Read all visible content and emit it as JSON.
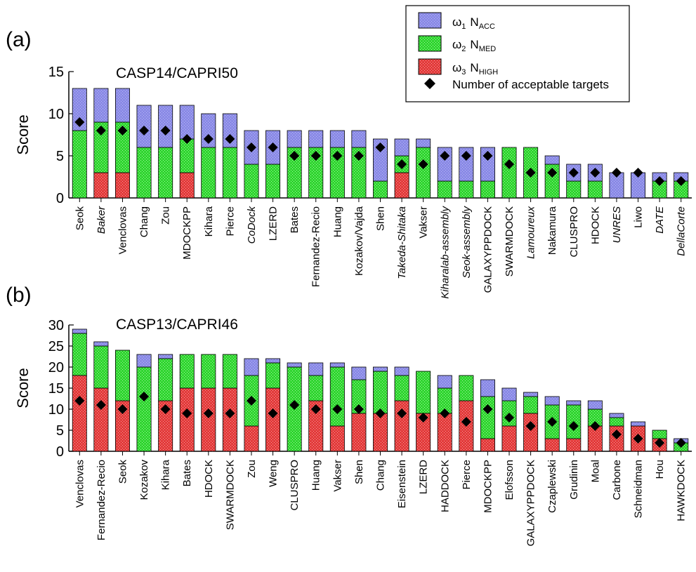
{
  "colors": {
    "acc": "#8a8ae6",
    "med": "#33dd33",
    "high": "#e33a3a",
    "marker": "#000000"
  },
  "legend": {
    "acc_w": "ω",
    "acc_w_sub": "1",
    "acc_n": "N",
    "acc_n_sub": "ACC",
    "med_w": "ω",
    "med_w_sub": "2",
    "med_n": "N",
    "med_n_sub": "MED",
    "high_w": "ω",
    "high_w_sub": "3",
    "high_n": "N",
    "high_n_sub": "HIGH",
    "marker_label": "Number of acceptable targets"
  },
  "chart_data": [
    {
      "type": "bar",
      "panel_label": "(a)",
      "title": "CASP14/CAPRI50",
      "ylabel": "Score",
      "ylim": [
        0,
        15
      ],
      "yticks": [
        0,
        5,
        10,
        15
      ],
      "categories": [
        "Seok",
        "Baker",
        "Venclovas",
        "Chang",
        "Zou",
        "MDOCKPP",
        "Kihara",
        "Pierce",
        "CoDock",
        "LZERD",
        "Bates",
        "Fernandez-Recio",
        "Huang",
        "Kozakov/Vajda",
        "Shen",
        "Takeda-Shitaka",
        "Vakser",
        "Kiharalab-assembly",
        "Seok-assembly",
        "GALAXYPPDOCK",
        "SWARMDOCK",
        "Lamoureux",
        "Nakamura",
        "CLUSPRO",
        "HDOCK",
        "UNRES",
        "Liwo",
        "DATE",
        "DellaCorte"
      ],
      "italic": [
        false,
        true,
        false,
        false,
        false,
        false,
        false,
        false,
        true,
        false,
        false,
        false,
        false,
        false,
        false,
        true,
        false,
        true,
        true,
        false,
        false,
        true,
        false,
        false,
        false,
        true,
        false,
        true,
        true
      ],
      "series": [
        {
          "name": "ω3 N_HIGH",
          "values": [
            0,
            3,
            3,
            0,
            0,
            3,
            0,
            0,
            0,
            0,
            0,
            0,
            0,
            0,
            0,
            3,
            0,
            0,
            0,
            0,
            0,
            0,
            0,
            0,
            0,
            0,
            0,
            0,
            0
          ]
        },
        {
          "name": "ω2 N_MED",
          "values": [
            8,
            6,
            6,
            6,
            6,
            4,
            6,
            6,
            4,
            4,
            6,
            6,
            6,
            6,
            2,
            2,
            6,
            2,
            2,
            2,
            6,
            6,
            4,
            2,
            2,
            0,
            0,
            2,
            2
          ]
        },
        {
          "name": "ω1 N_ACC",
          "values": [
            5,
            4,
            4,
            5,
            5,
            4,
            4,
            4,
            4,
            4,
            2,
            2,
            2,
            2,
            5,
            2,
            1,
            4,
            4,
            4,
            0,
            0,
            1,
            2,
            2,
            3,
            3,
            1,
            1
          ]
        }
      ],
      "acceptable_targets": [
        9,
        8,
        8,
        8,
        8,
        7,
        7,
        7,
        6,
        6,
        5,
        5,
        5,
        5,
        6,
        4,
        4,
        5,
        5,
        5,
        4,
        3,
        3,
        3,
        3,
        3,
        3,
        2,
        2
      ]
    },
    {
      "type": "bar",
      "panel_label": "(b)",
      "title": "CASP13/CAPRI46",
      "ylabel": "Score",
      "ylim": [
        0,
        30
      ],
      "yticks": [
        0,
        5,
        10,
        15,
        20,
        25,
        30
      ],
      "categories": [
        "Venclovas",
        "Fernandez-Recio",
        "Seok",
        "Kozakov",
        "Kihara",
        "Bates",
        "HDOCK",
        "SWARMDOCK",
        "Zou",
        "Weng",
        "CLUSPRO",
        "Huang",
        "Vakser",
        "Shen",
        "Chang",
        "Eisenstein",
        "LZERD",
        "HADDOCK",
        "Pierce",
        "MDOCKPP",
        "Elofsson",
        "GALAXYPPDOCK",
        "Czaplewski",
        "Grudinin",
        "Moal",
        "Carbone",
        "Schneidman",
        "Hou",
        "HAWKDOCK"
      ],
      "italic": [
        false,
        false,
        false,
        false,
        false,
        false,
        false,
        false,
        false,
        false,
        false,
        false,
        false,
        false,
        false,
        false,
        false,
        false,
        false,
        false,
        false,
        false,
        false,
        false,
        false,
        false,
        false,
        false,
        false
      ],
      "series": [
        {
          "name": "ω3 N_HIGH",
          "values": [
            18,
            15,
            12,
            0,
            12,
            15,
            15,
            15,
            6,
            15,
            0,
            12,
            6,
            9,
            9,
            12,
            9,
            9,
            12,
            3,
            6,
            9,
            3,
            3,
            6,
            6,
            6,
            3,
            0
          ]
        },
        {
          "name": "ω2 N_MED",
          "values": [
            10,
            10,
            12,
            20,
            10,
            8,
            8,
            8,
            12,
            6,
            20,
            6,
            14,
            8,
            10,
            6,
            10,
            6,
            6,
            10,
            6,
            4,
            8,
            8,
            4,
            2,
            0,
            2,
            2
          ]
        },
        {
          "name": "ω1 N_ACC",
          "values": [
            1,
            1,
            0,
            3,
            1,
            0,
            0,
            0,
            4,
            1,
            1,
            3,
            1,
            3,
            1,
            2,
            0,
            3,
            0,
            4,
            3,
            1,
            2,
            1,
            2,
            1,
            1,
            0,
            1
          ]
        }
      ],
      "acceptable_targets": [
        12,
        11,
        10,
        13,
        10,
        9,
        9,
        9,
        12,
        9,
        11,
        10,
        10,
        10,
        9,
        9,
        8,
        9,
        7,
        10,
        8,
        6,
        7,
        6,
        6,
        4,
        3,
        2,
        2
      ]
    }
  ]
}
